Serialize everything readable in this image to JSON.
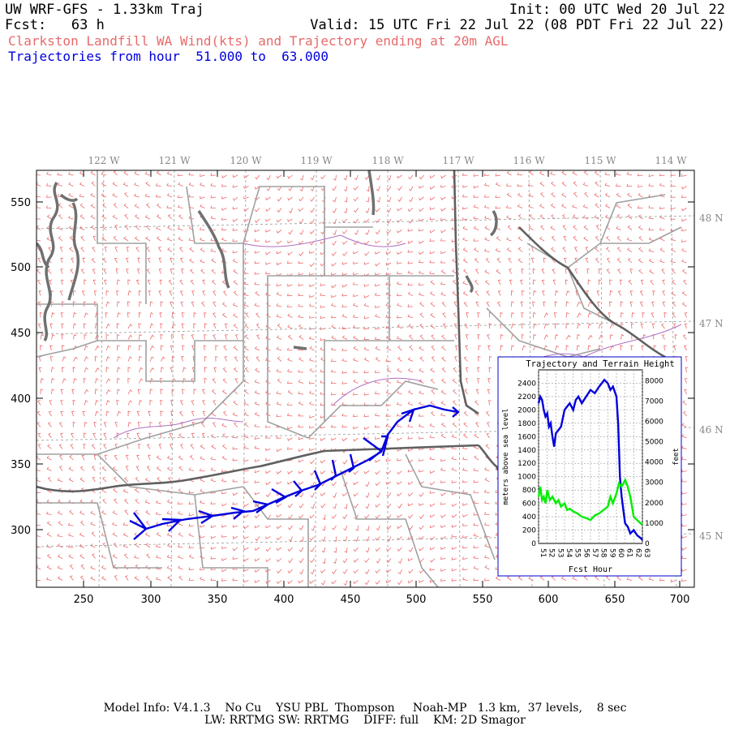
{
  "header": {
    "title": "UW WRF-GFS - 1.33km Traj",
    "fcst": "Fcst:   63 h",
    "init": "Init: 00 UTC Wed 20 Jul 22",
    "valid": "Valid: 15 UTC Fri 22 Jul 22 (08 PDT Fri 22 Jul 22)",
    "subtitle": "Clarkston Landfill WA Wind(kts) and Trajectory ending at 20m AGL",
    "traj_range": "Trajectories from hour  51.000 to  63.000"
  },
  "map": {
    "lon_labels": [
      "122 W",
      "121 W",
      "120 W",
      "119 W",
      "118 W",
      "117 W",
      "116 W",
      "115 W",
      "114 W"
    ],
    "lat_labels": [
      "48 N",
      "47 N",
      "46 N",
      "45 N"
    ],
    "x_ticks": [
      "250",
      "300",
      "350",
      "400",
      "450",
      "500",
      "550",
      "600",
      "650",
      "700"
    ],
    "y_ticks": [
      "550",
      "500",
      "450",
      "400",
      "350",
      "300"
    ],
    "colors": {
      "wind_barb": "#ee6666",
      "trajectory": "#0000dd",
      "county": "#a0a0a0",
      "state": "#606060",
      "water": "#707070",
      "grid": "#9a9a9a",
      "river": "#b070c0"
    }
  },
  "inset": {
    "title": "Trajectory and Terrain Height",
    "ylabel_left": "meters above sea level",
    "ylabel_right": "feet",
    "xlabel": "Fcst Hour",
    "yticks_m": [
      "0",
      "200",
      "400",
      "600",
      "800",
      "1000",
      "1200",
      "1400",
      "1600",
      "1800",
      "2000",
      "2200",
      "2400"
    ],
    "yticks_ft": [
      "0",
      "1000",
      "2000",
      "3000",
      "4000",
      "5000",
      "6000",
      "7000",
      "8000"
    ],
    "xticks": [
      "51",
      "52",
      "53",
      "54",
      "55",
      "56",
      "57",
      "58",
      "59",
      "60",
      "61",
      "62",
      "63"
    ]
  },
  "chart_data": {
    "type": "line",
    "title": "Trajectory and Terrain Height",
    "xlabel": "Fcst Hour",
    "ylabel": "meters above sea level",
    "xlim": [
      51,
      63
    ],
    "ylim": [
      0,
      2600
    ],
    "series": [
      {
        "color": "#0000dd",
        "x": [
          51,
          51.2,
          51.4,
          51.6,
          51.8,
          52,
          52.2,
          52.4,
          52.6,
          52.8,
          53,
          53.3,
          53.6,
          54,
          54.3,
          54.6,
          55,
          55.3,
          55.6,
          56,
          56.5,
          57,
          57.5,
          58,
          58.3,
          58.6,
          59,
          59.3,
          59.6,
          60,
          60.2,
          60.4,
          60.6,
          60.8,
          61,
          61.3,
          61.6,
          62,
          62.4,
          62.8,
          63
        ],
        "y": [
          2100,
          2200,
          2150,
          2000,
          1900,
          1950,
          1750,
          1800,
          1600,
          1450,
          1650,
          1700,
          1750,
          2000,
          2050,
          2100,
          2000,
          2150,
          2200,
          2100,
          2200,
          2300,
          2250,
          2350,
          2400,
          2450,
          2400,
          2300,
          2350,
          2200,
          1800,
          1000,
          700,
          500,
          300,
          250,
          150,
          200,
          120,
          80,
          50
        ]
      },
      {
        "color": "#00ee00",
        "x": [
          51,
          51.2,
          51.4,
          51.6,
          51.8,
          52,
          52.3,
          52.6,
          53,
          53.3,
          53.6,
          54,
          54.3,
          54.6,
          55,
          55.5,
          56,
          56.5,
          57,
          57.5,
          58,
          58.5,
          59,
          59.3,
          59.6,
          60,
          60.3,
          60.6,
          61,
          61.3,
          61.6,
          62,
          62.4,
          62.8,
          63
        ],
        "y": [
          700,
          850,
          650,
          700,
          600,
          800,
          650,
          700,
          600,
          650,
          550,
          600,
          500,
          520,
          480,
          450,
          400,
          380,
          350,
          420,
          450,
          500,
          550,
          700,
          600,
          750,
          900,
          850,
          950,
          850,
          700,
          400,
          350,
          300,
          280
        ]
      }
    ]
  },
  "footer": {
    "line1": "Model Info: V4.1.3    No Cu    YSU PBL  Thompson     Noah-MP   1.3 km,  37 levels,    8 sec",
    "line2": "LW: RRTMG SW: RRTMG    DIFF: full    KM: 2D Smagor"
  }
}
